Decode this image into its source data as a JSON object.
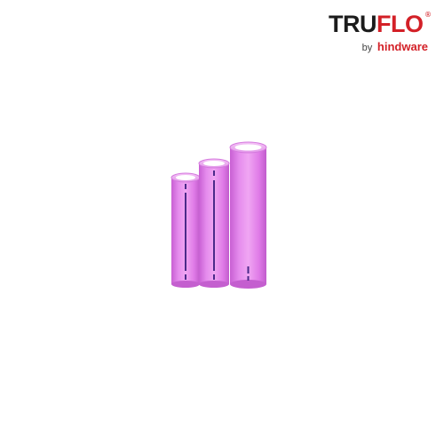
{
  "brand": {
    "wordmark_part1": "TRU",
    "wordmark_part2": "FLO",
    "registered": "®",
    "by": "by",
    "parent": "hindware",
    "color_dark": "#1c1c1c",
    "color_red": "#d32027"
  },
  "product": {
    "pipe_color": "#e07ae8",
    "pipe_shade": "#b84ec4",
    "stripe_color": "#4b2a8a"
  }
}
